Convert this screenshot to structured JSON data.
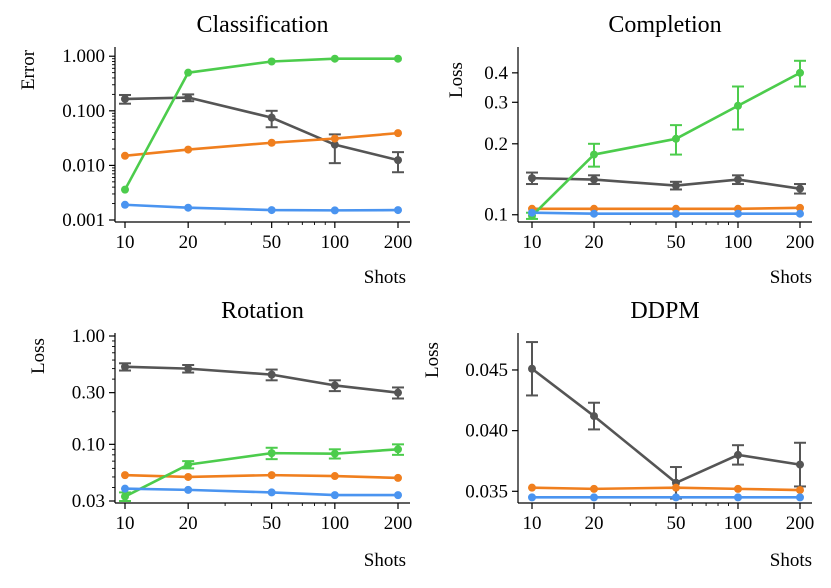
{
  "colors": {
    "gray": "#555555",
    "orange": "#f07f1e",
    "green": "#4ccc4c",
    "blue": "#4a94f0"
  },
  "chart_data": [
    {
      "type": "line",
      "title": "Classification",
      "xlabel": "Shots",
      "ylabel": "Error",
      "xscale": "log",
      "yscale": "log",
      "x": [
        10,
        20,
        50,
        100,
        200
      ],
      "xticks": [
        "10",
        "20",
        "50",
        "100",
        "200"
      ],
      "yticks": [
        0.001,
        0.01,
        0.1,
        1.0
      ],
      "ytick_labels": [
        "0.001",
        "0.010",
        "0.100",
        "1.000"
      ],
      "ylim": [
        0.001,
        1.3
      ],
      "series": [
        {
          "name": "gray",
          "color": "#555555",
          "values": [
            0.165,
            0.175,
            0.075,
            0.024,
            0.0125
          ],
          "err": [
            0.03,
            0.025,
            0.025,
            0.013,
            0.005
          ]
        },
        {
          "name": "orange",
          "color": "#f07f1e",
          "values": [
            0.015,
            0.0195,
            0.026,
            0.031,
            0.039
          ]
        },
        {
          "name": "green",
          "color": "#4ccc4c",
          "values": [
            0.0036,
            0.5,
            0.8,
            0.9,
            0.9
          ]
        },
        {
          "name": "blue",
          "color": "#4a94f0",
          "values": [
            0.0019,
            0.00168,
            0.00152,
            0.0015,
            0.00152
          ]
        }
      ]
    },
    {
      "type": "line",
      "title": "Completion",
      "xlabel": "Shots",
      "ylabel": "Loss",
      "xscale": "log",
      "yscale": "log",
      "x": [
        10,
        20,
        50,
        100,
        200
      ],
      "xticks": [
        "10",
        "20",
        "50",
        "100",
        "200"
      ],
      "yticks": [
        0.1,
        0.2,
        0.3,
        0.4
      ],
      "ytick_labels": [
        "0.1",
        "0.2",
        "0.3",
        "0.4"
      ],
      "ylim": [
        0.095,
        0.5
      ],
      "series": [
        {
          "name": "gray",
          "color": "#555555",
          "values": [
            0.143,
            0.141,
            0.133,
            0.141,
            0.129
          ],
          "err": [
            0.008,
            0.006,
            0.005,
            0.006,
            0.006
          ]
        },
        {
          "name": "orange",
          "color": "#f07f1e",
          "values": [
            0.106,
            0.106,
            0.106,
            0.106,
            0.107
          ]
        },
        {
          "name": "green",
          "color": "#4ccc4c",
          "values": [
            0.099,
            0.18,
            0.21,
            0.29,
            0.4
          ],
          "err": [
            0.003,
            0.02,
            0.03,
            0.06,
            0.05
          ]
        },
        {
          "name": "blue",
          "color": "#4a94f0",
          "values": [
            0.102,
            0.101,
            0.101,
            0.101,
            0.101
          ]
        }
      ]
    },
    {
      "type": "line",
      "title": "Rotation",
      "xlabel": "Shots",
      "ylabel": "Loss",
      "xscale": "log",
      "yscale": "log",
      "x": [
        10,
        20,
        50,
        100,
        200
      ],
      "xticks": [
        "10",
        "20",
        "50",
        "100",
        "200"
      ],
      "yticks": [
        0.03,
        0.1,
        0.3,
        1.0
      ],
      "ytick_labels": [
        "0.03",
        "0.10",
        "0.30",
        "1.00"
      ],
      "ylim": [
        0.03,
        1.0
      ],
      "series": [
        {
          "name": "gray",
          "color": "#555555",
          "values": [
            0.52,
            0.5,
            0.44,
            0.35,
            0.3
          ],
          "err": [
            0.04,
            0.04,
            0.05,
            0.04,
            0.035
          ]
        },
        {
          "name": "orange",
          "color": "#f07f1e",
          "values": [
            0.052,
            0.05,
            0.052,
            0.051,
            0.049
          ]
        },
        {
          "name": "green",
          "color": "#4ccc4c",
          "values": [
            0.033,
            0.065,
            0.083,
            0.082,
            0.09
          ],
          "err": [
            0.003,
            0.005,
            0.01,
            0.008,
            0.01
          ]
        },
        {
          "name": "blue",
          "color": "#4a94f0",
          "values": [
            0.039,
            0.038,
            0.036,
            0.034,
            0.034
          ]
        }
      ]
    },
    {
      "type": "line",
      "title": "DDPM",
      "xlabel": "Shots",
      "ylabel": "Loss",
      "xscale": "log",
      "yscale": "linear",
      "x": [
        10,
        20,
        50,
        100,
        200
      ],
      "xticks": [
        "10",
        "20",
        "50",
        "100",
        "200"
      ],
      "yticks": [
        0.035,
        0.04,
        0.045
      ],
      "ytick_labels": [
        "0.035",
        "0.040",
        "0.045"
      ],
      "ylim": [
        0.0342,
        0.0478
      ],
      "series": [
        {
          "name": "gray",
          "color": "#555555",
          "values": [
            0.0451,
            0.0412,
            0.0357,
            0.038,
            0.0372
          ],
          "err": [
            0.0022,
            0.0011,
            0.0013,
            0.0008,
            0.0018
          ]
        },
        {
          "name": "orange",
          "color": "#f07f1e",
          "values": [
            0.0353,
            0.0352,
            0.0353,
            0.0352,
            0.0351
          ]
        },
        {
          "name": "blue",
          "color": "#4a94f0",
          "values": [
            0.0345,
            0.0345,
            0.0345,
            0.0345,
            0.0345
          ]
        }
      ]
    }
  ]
}
